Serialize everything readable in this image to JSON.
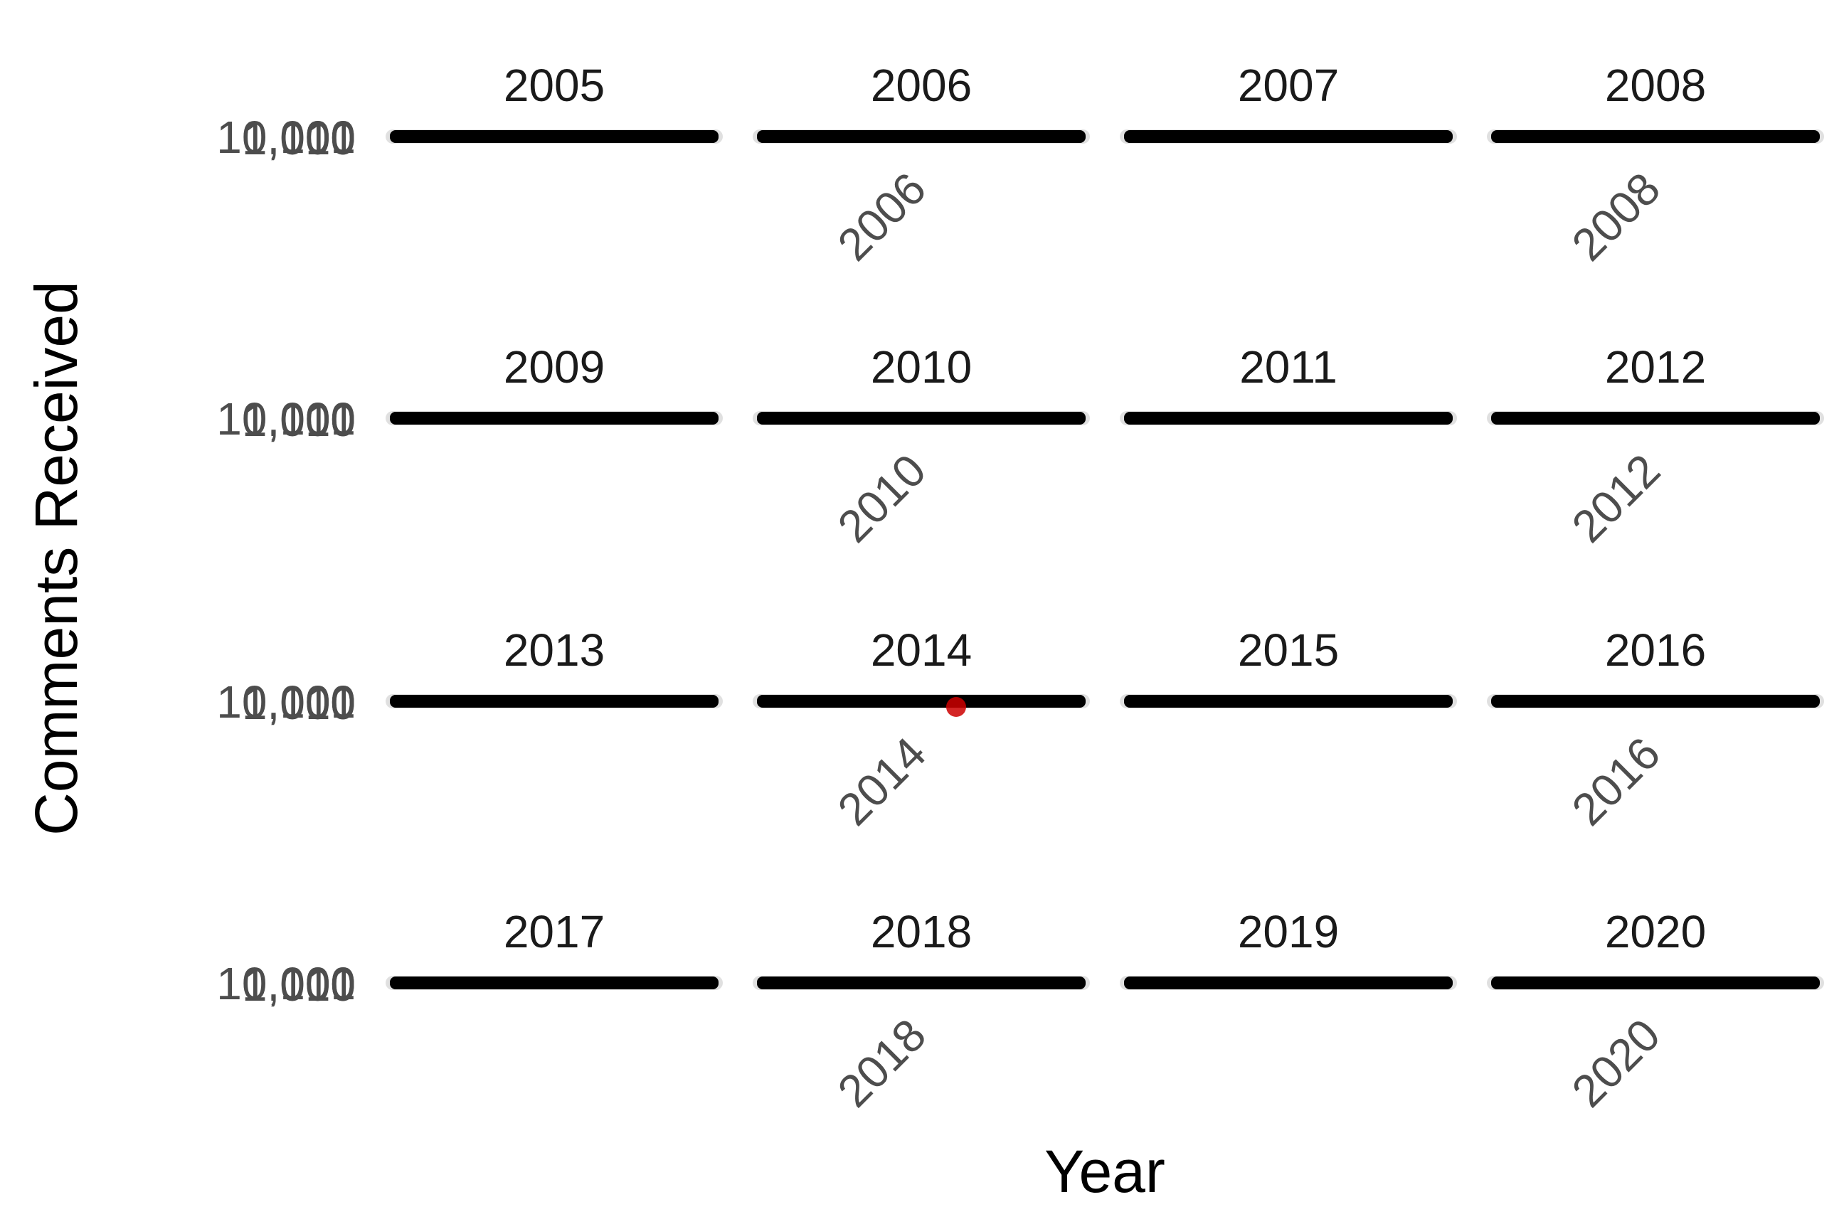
{
  "chart_data": {
    "type": "scatter",
    "layout": "facet_wrap",
    "ncol": 4,
    "xlabel": "Year",
    "ylabel": "Comments Received",
    "y_tick_labels": [
      "1",
      "10",
      "100",
      "1,000",
      "10,000"
    ],
    "y_scale": "log",
    "grid": false,
    "facets": [
      {
        "label": "2005",
        "x_tick_label": ""
      },
      {
        "label": "2006",
        "x_tick_label": "2006"
      },
      {
        "label": "2007",
        "x_tick_label": ""
      },
      {
        "label": "2008",
        "x_tick_label": "2008"
      },
      {
        "label": "2009",
        "x_tick_label": ""
      },
      {
        "label": "2010",
        "x_tick_label": "2010"
      },
      {
        "label": "2011",
        "x_tick_label": ""
      },
      {
        "label": "2012",
        "x_tick_label": "2012"
      },
      {
        "label": "2013",
        "x_tick_label": ""
      },
      {
        "label": "2014",
        "x_tick_label": "2014"
      },
      {
        "label": "2015",
        "x_tick_label": ""
      },
      {
        "label": "2016",
        "x_tick_label": "2016"
      },
      {
        "label": "2017",
        "x_tick_label": ""
      },
      {
        "label": "2018",
        "x_tick_label": "2018"
      },
      {
        "label": "2019",
        "x_tick_label": ""
      },
      {
        "label": "2020",
        "x_tick_label": "2020"
      }
    ],
    "highlight_point": {
      "facet": "2014",
      "color": "#cc0000"
    },
    "point_color": "#000000"
  }
}
